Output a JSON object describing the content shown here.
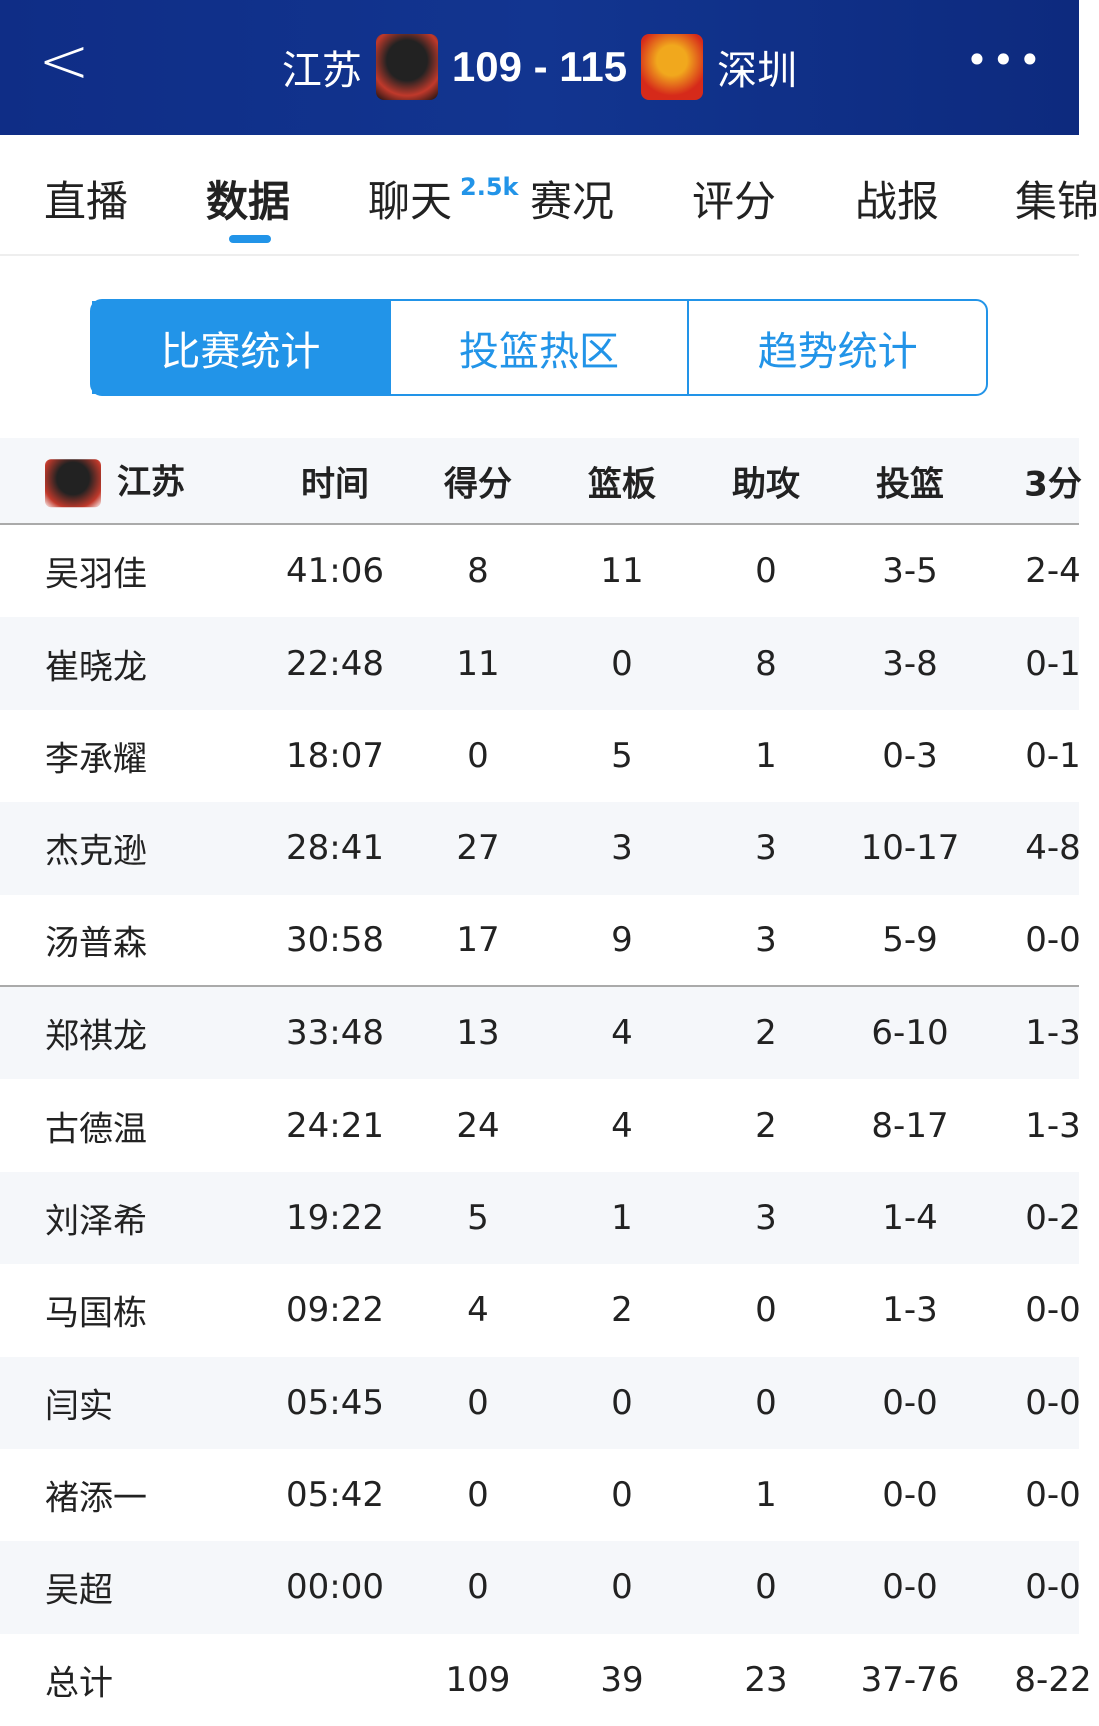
{
  "header": {
    "home_team": "江苏",
    "score": "109 - 115",
    "away_team": "深圳"
  },
  "tabs": [
    {
      "label": "直播"
    },
    {
      "label": "数据"
    },
    {
      "label": "聊天"
    },
    {
      "label": "赛况"
    },
    {
      "label": "评分"
    },
    {
      "label": "战报"
    },
    {
      "label": "集锦"
    }
  ],
  "chat_badge": "2.5k",
  "segments": [
    "比赛统计",
    "投篮热区",
    "趋势统计"
  ],
  "table": {
    "team": "江苏",
    "columns": [
      "时间",
      "得分",
      "篮板",
      "助攻",
      "投篮",
      "3分"
    ],
    "rows": [
      [
        "吴羽佳",
        "41:06",
        "8",
        "11",
        "0",
        "3-5",
        "2-4"
      ],
      [
        "崔晓龙",
        "22:48",
        "11",
        "0",
        "8",
        "3-8",
        "0-1"
      ],
      [
        "李承耀",
        "18:07",
        "0",
        "5",
        "1",
        "0-3",
        "0-1"
      ],
      [
        "杰克逊",
        "28:41",
        "27",
        "3",
        "3",
        "10-17",
        "4-8"
      ],
      [
        "汤普森",
        "30:58",
        "17",
        "9",
        "3",
        "5-9",
        "0-0"
      ],
      [
        "郑祺龙",
        "33:48",
        "13",
        "4",
        "2",
        "6-10",
        "1-3"
      ],
      [
        "古德温",
        "24:21",
        "24",
        "4",
        "2",
        "8-17",
        "1-3"
      ],
      [
        "刘泽希",
        "19:22",
        "5",
        "1",
        "3",
        "1-4",
        "0-2"
      ],
      [
        "马国栋",
        "09:22",
        "4",
        "2",
        "0",
        "1-3",
        "0-0"
      ],
      [
        "闫实",
        "05:45",
        "0",
        "0",
        "0",
        "0-0",
        "0-0"
      ],
      [
        "褚添一",
        "05:42",
        "0",
        "0",
        "1",
        "0-0",
        "0-0"
      ],
      [
        "吴超",
        "00:00",
        "0",
        "0",
        "0",
        "0-0",
        "0-0"
      ],
      [
        "总计",
        "",
        "109",
        "39",
        "23",
        "37-76",
        "8-22"
      ]
    ]
  },
  "colors": {
    "header_bg": "#123590",
    "accent": "#2294e8"
  }
}
